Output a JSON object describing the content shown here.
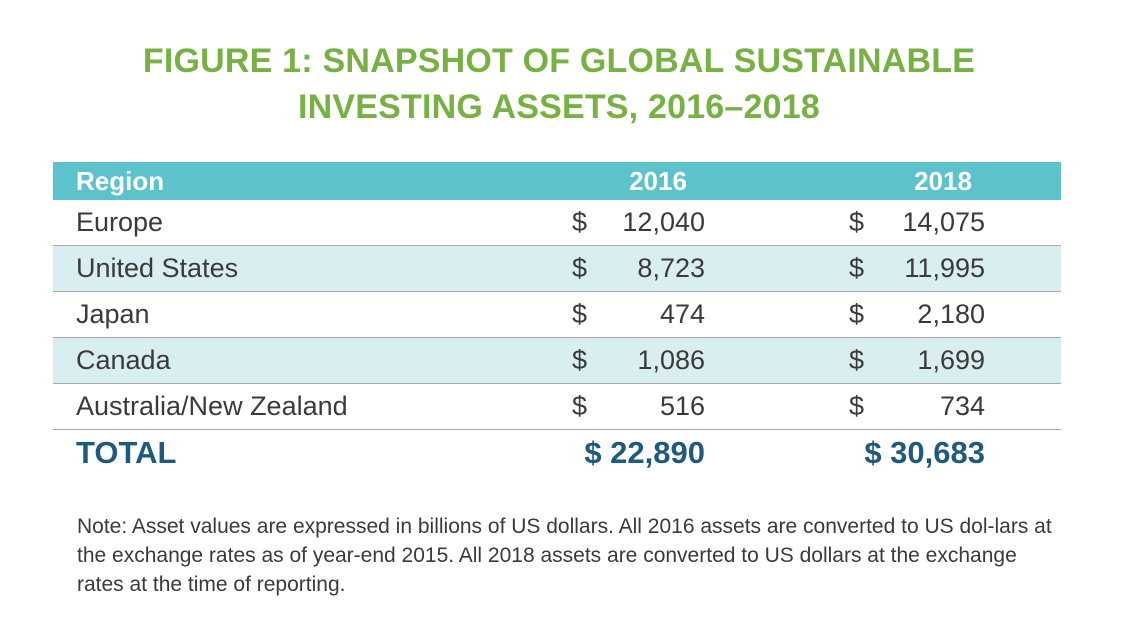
{
  "figure": {
    "title_line1": "FIGURE 1:  SNAPSHOT OF GLOBAL SUSTAINABLE",
    "title_line2": "INVESTING ASSETS, 2016–2018"
  },
  "table": {
    "headers": [
      "Region",
      "2016",
      "2018"
    ],
    "currency_symbol": "$",
    "rows": [
      {
        "region": "Europe",
        "v2016": "12,040",
        "v2018": "14,075",
        "shaded": false
      },
      {
        "region": "United States",
        "v2016": "8,723",
        "v2018": "11,995",
        "shaded": true
      },
      {
        "region": "Japan",
        "v2016": "474",
        "v2018": "2,180",
        "shaded": false
      },
      {
        "region": "Canada",
        "v2016": "1,086",
        "v2018": "1,699",
        "shaded": true
      },
      {
        "region": "Australia/New Zealand",
        "v2016": "516",
        "v2018": "734",
        "shaded": false
      }
    ],
    "total": {
      "label": "TOTAL",
      "v2016": "$ 22,890",
      "v2018": "$ 30,683"
    }
  },
  "note": "Note:  Asset values are expressed in billions of US dollars.  All 2016 assets are converted to US dol-lars at the exchange rates as of year-end 2015.  All 2018 assets  are converted to US dollars at the exchange rates at the time of reporting.",
  "colors": {
    "title_green": "#77b144",
    "header_teal": "#5cc3cc",
    "row_shade": "#d8eef1",
    "total_blue": "#1e5a7e"
  }
}
